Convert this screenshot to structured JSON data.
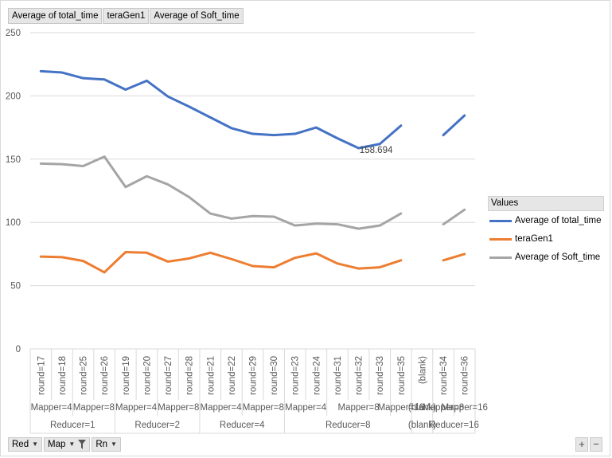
{
  "field_buttons": [
    "Average of total_time",
    "teraGen1",
    "Average of Soft_time"
  ],
  "filter_buttons": [
    {
      "label": "Red"
    },
    {
      "label": "Map",
      "filtered": true
    },
    {
      "label": "Rn"
    }
  ],
  "zoom": {
    "plus": "+",
    "minus": "−"
  },
  "legend": {
    "title": "Values",
    "placement": "right"
  },
  "chart_data": {
    "type": "line",
    "ylim": [
      0,
      250
    ],
    "yticks": [
      0,
      50,
      100,
      150,
      200,
      250
    ],
    "grid": true,
    "categories": [
      "round=17",
      "round=18",
      "round=25",
      "round=26",
      "round=19",
      "round=20",
      "round=27",
      "round=28",
      "round=21",
      "round=22",
      "round=29",
      "round=30",
      "round=23",
      "round=24",
      "round=31",
      "round=32",
      "round=33",
      "round=35",
      "(blank)",
      "round=34",
      "round=36"
    ],
    "mapper_groups": [
      {
        "label": "Mapper=4",
        "span": 2
      },
      {
        "label": "Mapper=8",
        "span": 2
      },
      {
        "label": "Mapper=4",
        "span": 2
      },
      {
        "label": "Mapper=8",
        "span": 2
      },
      {
        "label": "Mapper=4",
        "span": 2
      },
      {
        "label": "Mapper=8",
        "span": 2
      },
      {
        "label": "Mapper=4",
        "span": 2
      },
      {
        "label": "Mapper=8",
        "span": 3
      },
      {
        "label": "Mapper=16",
        "span": 1
      },
      {
        "label": "(blank)",
        "span": 1
      },
      {
        "label": "Mapper=8",
        "span": 1
      },
      {
        "label": "Mapper=16",
        "span": 1
      }
    ],
    "reducer_groups": [
      {
        "label": "Reducer=1",
        "span": 4
      },
      {
        "label": "Reducer=2",
        "span": 4
      },
      {
        "label": "Reducer=4",
        "span": 4
      },
      {
        "label": "Reducer=8",
        "span": 6
      },
      {
        "label": "(blank)",
        "span": 1
      },
      {
        "label": "Reducer=16",
        "span": 2
      }
    ],
    "series": [
      {
        "name": "Average of total_time",
        "color": "#4472c4",
        "values": [
          219.5,
          218.5,
          214,
          213,
          205,
          212,
          199.5,
          191.5,
          183,
          174.5,
          170,
          169,
          170,
          175,
          166.5,
          158.694,
          162,
          176.5,
          null,
          169,
          184.5
        ]
      },
      {
        "name": "teraGen1",
        "color": "#ed7d31",
        "values": [
          73,
          72.5,
          69.5,
          60.5,
          76.5,
          76,
          69,
          71.5,
          76,
          71,
          65.5,
          64.5,
          72,
          75.5,
          67.5,
          63.5,
          64.5,
          70,
          null,
          70,
          75
        ]
      },
      {
        "name": "Average of Soft_time",
        "color": "#a5a5a5",
        "values": [
          146.5,
          146,
          144.5,
          152,
          128,
          136.5,
          130,
          120,
          107,
          103,
          105,
          104.5,
          97.5,
          99,
          98.5,
          95,
          97.5,
          107,
          null,
          98.5,
          110
        ]
      }
    ],
    "annotations": [
      {
        "series": 0,
        "index": 15,
        "text": "158.694"
      }
    ]
  }
}
